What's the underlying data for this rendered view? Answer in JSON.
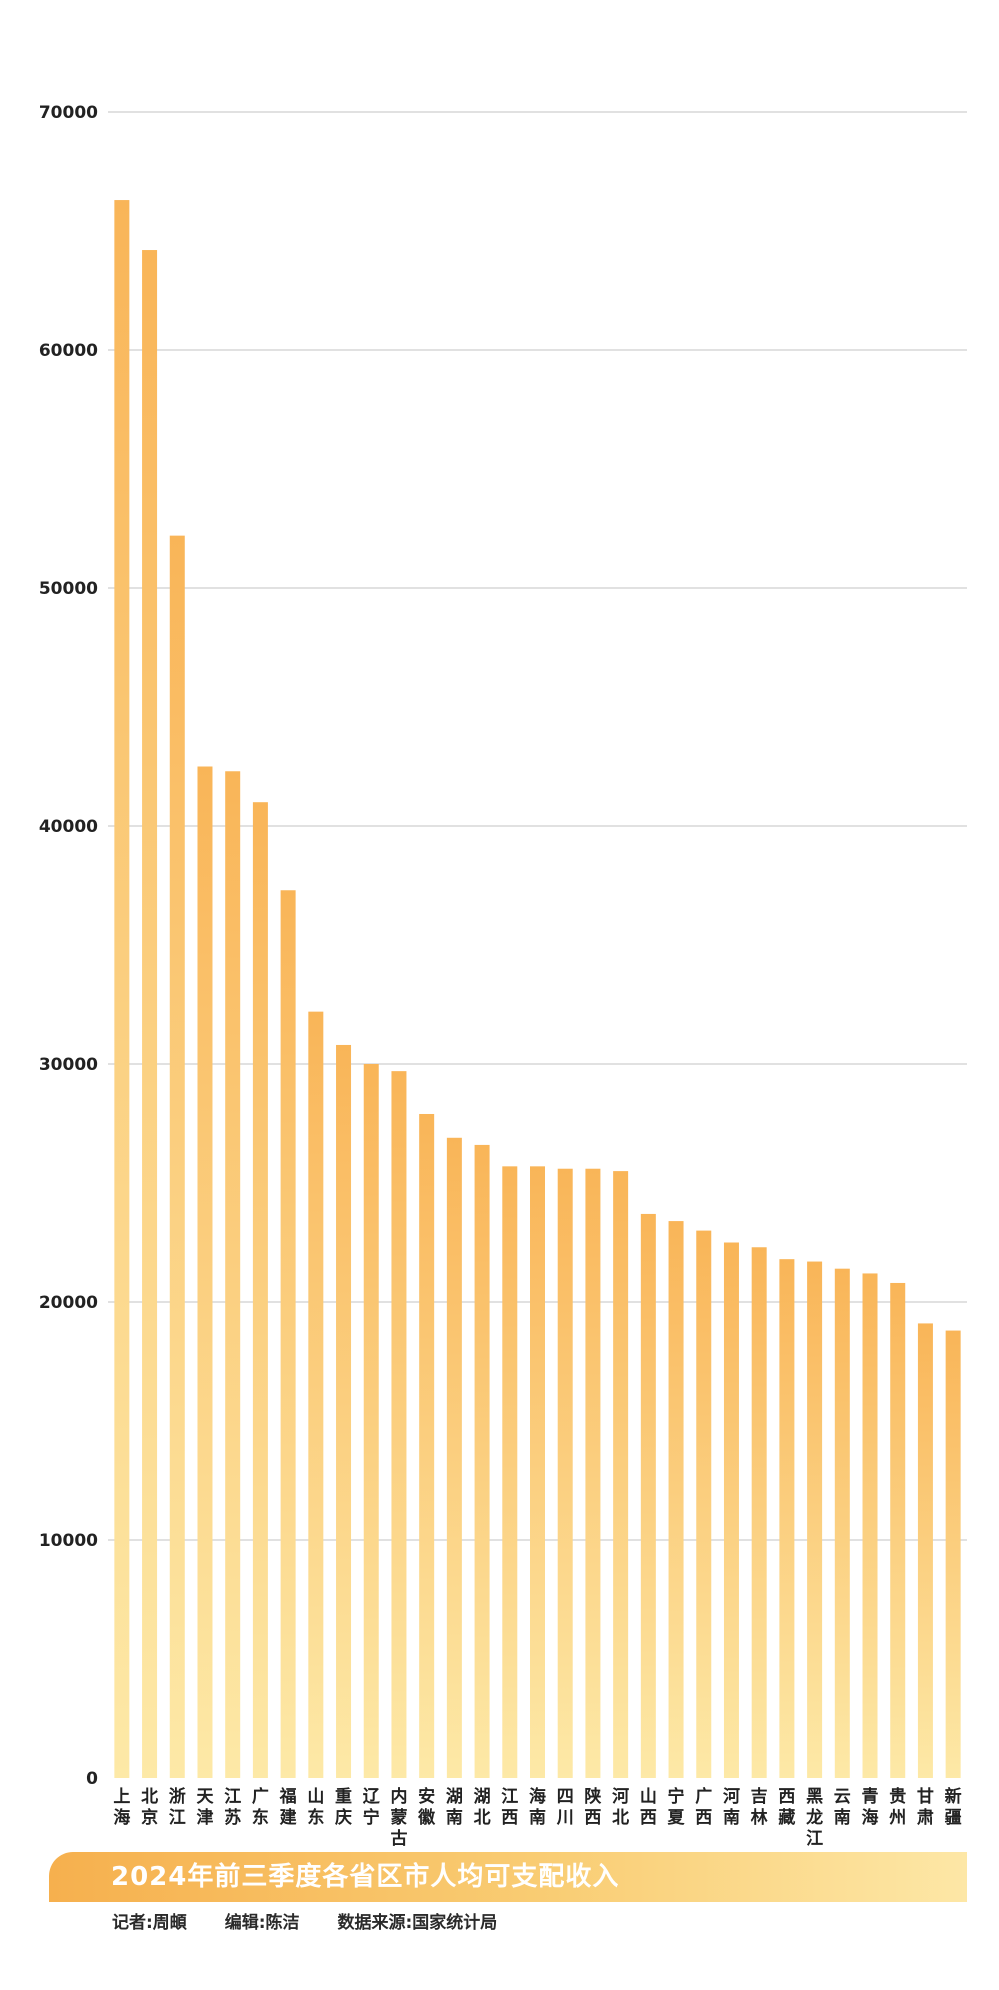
{
  "chart_data": {
    "type": "bar",
    "title": "2024年前三季度各省区市人均可支配收入",
    "xlabel": "",
    "ylabel": "",
    "ylim": [
      0,
      70000
    ],
    "yticks": [
      0,
      10000,
      20000,
      30000,
      40000,
      50000,
      60000,
      70000
    ],
    "grid": true,
    "categories": [
      "上海",
      "北京",
      "浙江",
      "天津",
      "江苏",
      "广东",
      "福建",
      "山东",
      "重庆",
      "辽宁",
      "内蒙古",
      "安徽",
      "湖南",
      "湖北",
      "江西",
      "海南",
      "四川",
      "陕西",
      "河北",
      "山西",
      "宁夏",
      "广西",
      "河南",
      "吉林",
      "西藏",
      "黑龙江",
      "云南",
      "青海",
      "贵州",
      "甘肃",
      "新疆"
    ],
    "values": [
      66300,
      64200,
      52200,
      42500,
      42300,
      41000,
      37300,
      32200,
      30800,
      30000,
      29700,
      27900,
      26900,
      26600,
      25700,
      25700,
      25600,
      25600,
      25500,
      23700,
      23400,
      23000,
      22500,
      22300,
      21800,
      21700,
      21400,
      21200,
      20800,
      19100,
      18800
    ],
    "bar_color_top": "#f9b558",
    "bar_color_bottom": "#fde9a7"
  },
  "footer": {
    "reporter": "记者:周頔",
    "editor": "编辑:陈洁",
    "source": "数据来源:国家统计局"
  }
}
